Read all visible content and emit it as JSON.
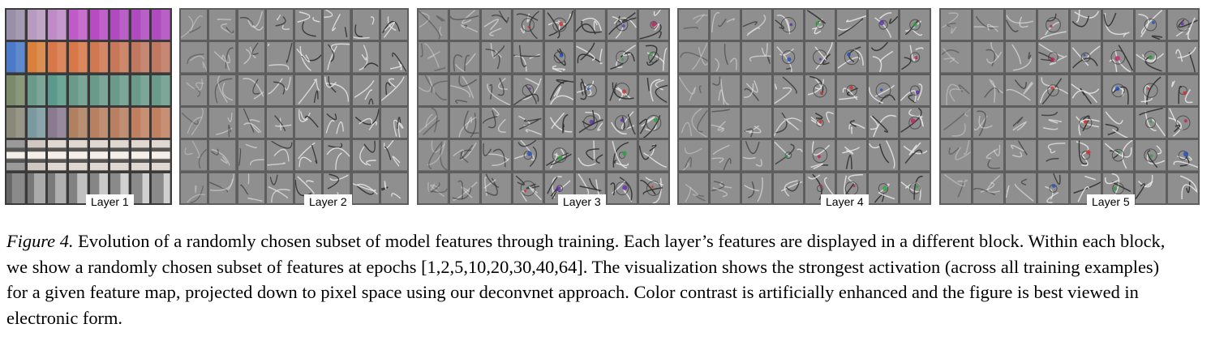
{
  "figure": {
    "panels": [
      {
        "label": "Layer 1",
        "style": "color-patches"
      },
      {
        "label": "Layer 2",
        "style": "edges"
      },
      {
        "label": "Layer 3",
        "style": "textures"
      },
      {
        "label": "Layer 4",
        "style": "parts"
      },
      {
        "label": "Layer 5",
        "style": "objects"
      }
    ],
    "rows_per_panel": 6,
    "epoch_columns": 8
  },
  "caption": {
    "label": "Figure 4.",
    "text": " Evolution of a randomly chosen subset of model features through training. Each layer’s features are displayed in a different block. Within each block, we show a randomly chosen subset of features at epochs [1,2,5,10,20,30,40,64]. The visualization shows the strongest activation (across all training examples) for a given feature map, projected down to pixel space using our deconvnet approach. Color contrast is artificially enhanced and the figure is best viewed in electronic form."
  },
  "colors": {
    "layer1_rows": [
      [
        "#9a8fa8",
        "#b79ac0",
        "#c08ac8",
        "#c05ac8",
        "#b84ac4",
        "#b04ac0",
        "#b04ac0",
        "#b04ac0"
      ],
      [
        "#4a7ac8",
        "#d8803c",
        "#d87848",
        "#d87848",
        "#d07850",
        "#c87858",
        "#c07860",
        "#c07860"
      ],
      [
        "#7a8a6a",
        "#6a9a8a",
        "#5a9a8a",
        "#6a9a8a",
        "#6a9a8a",
        "#6a9a8a",
        "#6a9a8a",
        "#6a9a8a"
      ],
      [
        "#8a8878",
        "#7a9aa0",
        "#8a7a90",
        "#b08060",
        "#b88060",
        "#b88060",
        "#c08060",
        "#c08060"
      ],
      [
        "#9a9a9a",
        "#cfc8c0",
        "#e0d8d0",
        "#e0d8d0",
        "#e0d8d0",
        "#e0d8d0",
        "#e0d8d0",
        "#e0d8d0"
      ],
      [
        "#8a8a8a",
        "#aaaaaa",
        "#b0b0b0",
        "#c0c0c0",
        "#c8c8c8",
        "#d0d0d0",
        "#d0d0d0",
        "#d0d0d0"
      ]
    ]
  }
}
